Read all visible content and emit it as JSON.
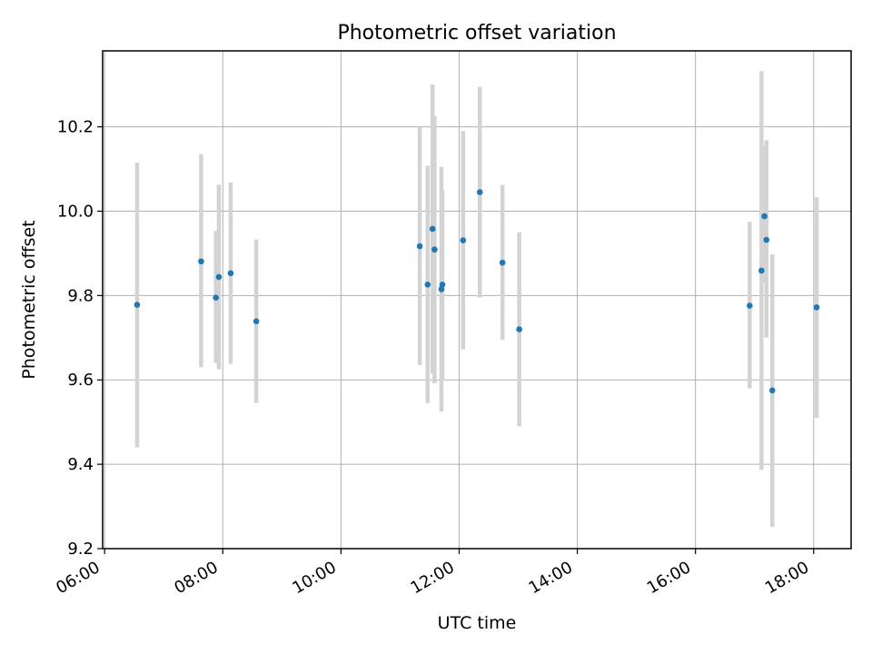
{
  "chart_data": {
    "type": "scatter",
    "title": "Photometric offset variation",
    "xlabel": "UTC time",
    "ylabel": "Photometric offset",
    "x_tick_labels": [
      "06:00",
      "08:00",
      "10:00",
      "12:00",
      "14:00",
      "16:00",
      "18:00"
    ],
    "y_tick_labels": [
      "9.2",
      "9.4",
      "9.6",
      "9.8",
      "10.0",
      "10.2"
    ],
    "xlim": [
      "05:58",
      "18:38"
    ],
    "ylim": [
      9.2,
      10.38
    ],
    "grid": true,
    "points": [
      {
        "x": "06:33",
        "y": 9.778,
        "err_low": 9.44,
        "err_high": 10.115
      },
      {
        "x": "07:38",
        "y": 9.881,
        "err_low": 9.63,
        "err_high": 10.135
      },
      {
        "x": "07:53",
        "y": 9.795,
        "err_low": 9.64,
        "err_high": 9.953
      },
      {
        "x": "07:56",
        "y": 9.844,
        "err_low": 9.625,
        "err_high": 10.063
      },
      {
        "x": "08:08",
        "y": 9.853,
        "err_low": 9.638,
        "err_high": 10.068
      },
      {
        "x": "08:34",
        "y": 9.739,
        "err_low": 9.545,
        "err_high": 9.933
      },
      {
        "x": "11:20",
        "y": 9.917,
        "err_low": 9.635,
        "err_high": 10.2
      },
      {
        "x": "11:28",
        "y": 9.826,
        "err_low": 9.545,
        "err_high": 10.108
      },
      {
        "x": "11:33",
        "y": 9.958,
        "err_low": 9.615,
        "err_high": 10.3
      },
      {
        "x": "11:35",
        "y": 9.909,
        "err_low": 9.592,
        "err_high": 10.226
      },
      {
        "x": "11:42",
        "y": 9.815,
        "err_low": 9.525,
        "err_high": 10.105
      },
      {
        "x": "11:43",
        "y": 9.826,
        "err_low": 9.6,
        "err_high": 10.05
      },
      {
        "x": "12:04",
        "y": 9.931,
        "err_low": 9.672,
        "err_high": 10.19
      },
      {
        "x": "12:21",
        "y": 10.045,
        "err_low": 9.795,
        "err_high": 10.295
      },
      {
        "x": "12:44",
        "y": 9.878,
        "err_low": 9.695,
        "err_high": 10.062
      },
      {
        "x": "13:01",
        "y": 9.72,
        "err_low": 9.49,
        "err_high": 9.95
      },
      {
        "x": "16:55",
        "y": 9.776,
        "err_low": 9.58,
        "err_high": 9.975
      },
      {
        "x": "17:07",
        "y": 9.859,
        "err_low": 9.387,
        "err_high": 10.332
      },
      {
        "x": "17:10",
        "y": 9.988,
        "err_low": 9.83,
        "err_high": 10.155
      },
      {
        "x": "17:12",
        "y": 9.932,
        "err_low": 9.7,
        "err_high": 10.168
      },
      {
        "x": "17:18",
        "y": 9.575,
        "err_low": 9.252,
        "err_high": 9.898
      },
      {
        "x": "18:03",
        "y": 9.772,
        "err_low": 9.51,
        "err_high": 10.033
      }
    ],
    "colors": {
      "marker": "#1f77b4",
      "errorbar": "#d3d3d3",
      "grid": "#b0b0b0",
      "axes": "#000000"
    }
  }
}
